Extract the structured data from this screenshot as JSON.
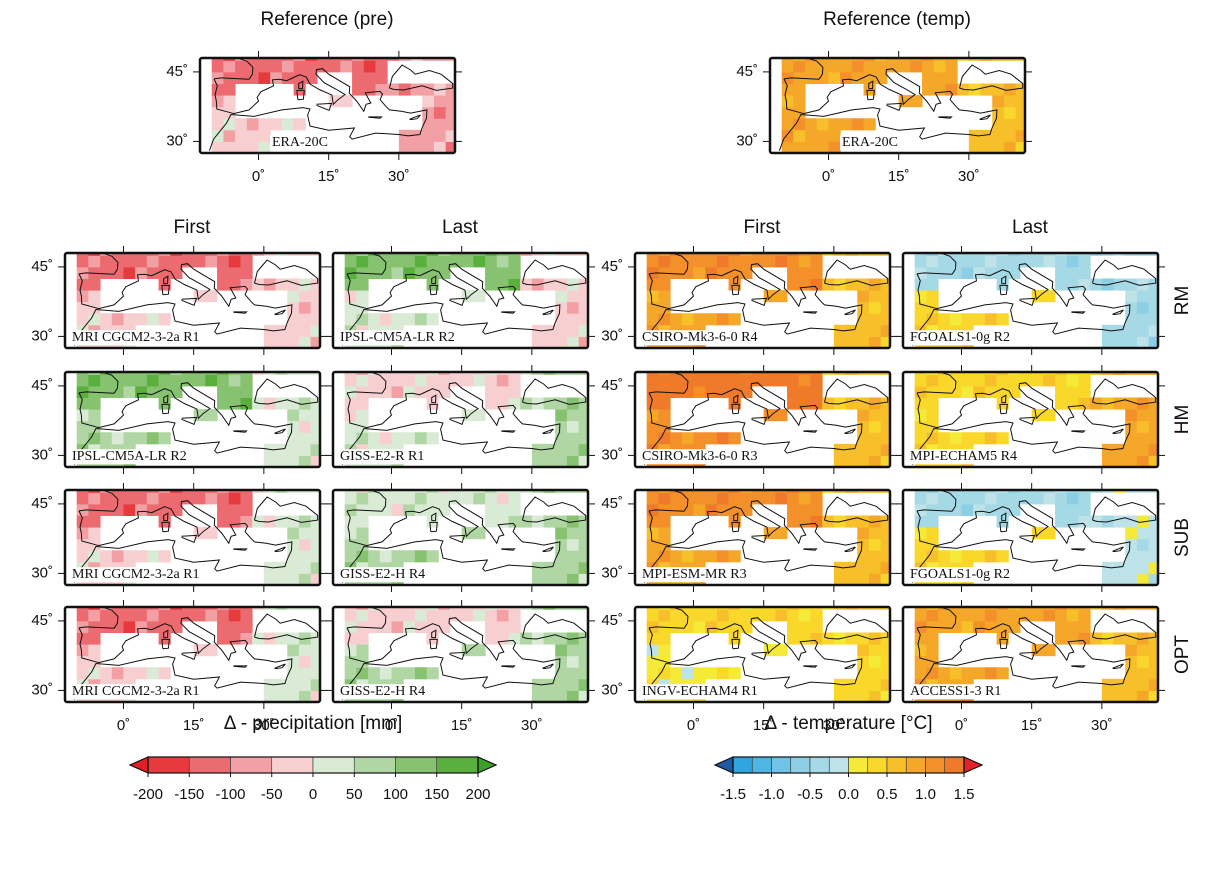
{
  "rows": [
    "RM",
    "HM",
    "SUB",
    "OPT"
  ],
  "map": {
    "lonlim": [
      -12.5,
      42
    ],
    "latlim": [
      27.5,
      48
    ],
    "lon_ticks": [
      {
        "value": 0,
        "label": "0˚"
      },
      {
        "value": 15,
        "label": "15˚"
      },
      {
        "value": 30,
        "label": "30˚"
      }
    ],
    "lat_ticks": [
      {
        "value": 30,
        "label": "30˚"
      },
      {
        "value": 45,
        "label": "45˚"
      }
    ]
  },
  "variables": [
    {
      "reference_title": "Reference (pre)",
      "reference_model": "ERA-20C",
      "columns": [
        "First",
        "Last"
      ],
      "models": [
        [
          "MRI CGCM2-3-2a R1",
          "IPSL-CM5A-LR R2"
        ],
        [
          "IPSL-CM5A-LR R2",
          "GISS-E2-R R1"
        ],
        [
          "MRI CGCM2-3-2a R1",
          "GISS-E2-H R4"
        ],
        [
          "MRI CGCM2-3-2a R1",
          "GISS-E2-H R4"
        ]
      ],
      "colorbar": {
        "label": "Δ - precipitation [mm]",
        "lim": [
          -200,
          200
        ],
        "ticks": [
          -200,
          -150,
          -100,
          -50,
          0,
          50,
          100,
          150,
          200
        ],
        "colors": [
          "#e63a3e",
          "#ec6b70",
          "#f2a0a4",
          "#f8cfd0",
          "#d9ebd4",
          "#b0d6a4",
          "#86c26f",
          "#5ab03c"
        ],
        "under_color": "#e01f26",
        "over_color": "#3aa02a"
      }
    },
    {
      "reference_title": "Reference (temp)",
      "reference_model": "ERA-20C",
      "columns": [
        "First",
        "Last"
      ],
      "models": [
        [
          "CSIRO-Mk3-6-0 R4",
          "FGOALS1-0g R2"
        ],
        [
          "CSIRO-Mk3-6-0 R3",
          "MPI-ECHAM5 R4"
        ],
        [
          "MPI-ESM-MR R3",
          "FGOALS1-0g R2"
        ],
        [
          "INGV-ECHAM4 R1",
          "ACCESS1-3 R1"
        ]
      ],
      "colorbar": {
        "label": "Δ - temperature [°C]",
        "lim": [
          -1.5,
          1.5
        ],
        "ticks": [
          -1.5,
          {
            "value": -1,
            "label": "-1.0"
          },
          -0.5,
          {
            "value": 0,
            "label": "0.0"
          },
          0.5,
          {
            "value": 1,
            "label": "1.0"
          },
          1.5
        ],
        "colors": [
          "#2fa6e0",
          "#4fb6e4",
          "#6fc3e6",
          "#8ccfe5",
          "#a6d9e6",
          "#bde2e8",
          "#f5ea38",
          "#f9d82b",
          "#f7c02a",
          "#f5a72a",
          "#f3902a",
          "#ef7a2a"
        ],
        "under_color": "#2058a6",
        "over_color": "#e8202b"
      }
    }
  ]
}
